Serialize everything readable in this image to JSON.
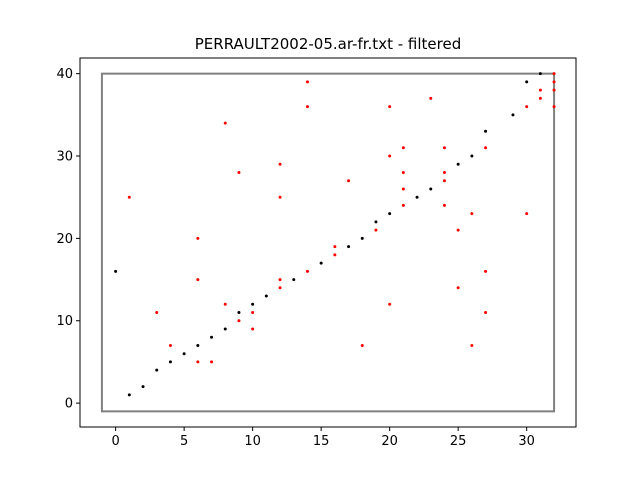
{
  "chart_data": {
    "type": "scatter",
    "title": "PERRAULT2002-05.ar-fr.txt - filtered",
    "xlabel": "",
    "ylabel": "",
    "xlim": [
      -2.6,
      33.6
    ],
    "ylim": [
      -2.9,
      41.9
    ],
    "xticks": [
      0,
      5,
      10,
      15,
      20,
      25,
      30
    ],
    "yticks": [
      0,
      10,
      20,
      30,
      40
    ],
    "grid": false,
    "box": {
      "x": [
        -1,
        32
      ],
      "y": [
        -1,
        40
      ],
      "color": "#808080"
    },
    "series": [
      {
        "color": "#000000",
        "points": [
          [
            0,
            16
          ],
          [
            1,
            1
          ],
          [
            2,
            2
          ],
          [
            3,
            4
          ],
          [
            4,
            5
          ],
          [
            5,
            6
          ],
          [
            6,
            7
          ],
          [
            7,
            8
          ],
          [
            8,
            9
          ],
          [
            9,
            11
          ],
          [
            10,
            12
          ],
          [
            11,
            13
          ],
          [
            13,
            15
          ],
          [
            15,
            17
          ],
          [
            17,
            19
          ],
          [
            18,
            20
          ],
          [
            19,
            22
          ],
          [
            20,
            23
          ],
          [
            22,
            25
          ],
          [
            23,
            26
          ],
          [
            25,
            29
          ],
          [
            26,
            30
          ],
          [
            27,
            33
          ],
          [
            29,
            35
          ],
          [
            30,
            39
          ],
          [
            31,
            40
          ]
        ]
      },
      {
        "color": "#ff0000",
        "points": [
          [
            1,
            25
          ],
          [
            3,
            11
          ],
          [
            4,
            7
          ],
          [
            6,
            20
          ],
          [
            6,
            15
          ],
          [
            6,
            5
          ],
          [
            7,
            5
          ],
          [
            8,
            34
          ],
          [
            8,
            12
          ],
          [
            9,
            28
          ],
          [
            9,
            10
          ],
          [
            10,
            11
          ],
          [
            10,
            9
          ],
          [
            12,
            29
          ],
          [
            12,
            25
          ],
          [
            12,
            15
          ],
          [
            12,
            14
          ],
          [
            14,
            39
          ],
          [
            14,
            36
          ],
          [
            14,
            16
          ],
          [
            16,
            19
          ],
          [
            16,
            18
          ],
          [
            17,
            27
          ],
          [
            18,
            7
          ],
          [
            19,
            21
          ],
          [
            20,
            36
          ],
          [
            20,
            30
          ],
          [
            20,
            12
          ],
          [
            21,
            31
          ],
          [
            21,
            28
          ],
          [
            21,
            26
          ],
          [
            21,
            24
          ],
          [
            23,
            37
          ],
          [
            24,
            31
          ],
          [
            24,
            28
          ],
          [
            24,
            27
          ],
          [
            24,
            24
          ],
          [
            25,
            21
          ],
          [
            25,
            14
          ],
          [
            26,
            23
          ],
          [
            26,
            7
          ],
          [
            27,
            31
          ],
          [
            27,
            16
          ],
          [
            27,
            11
          ],
          [
            30,
            36
          ],
          [
            30,
            23
          ],
          [
            31,
            38
          ],
          [
            31,
            37
          ],
          [
            32,
            40
          ],
          [
            32,
            39
          ],
          [
            32,
            38
          ],
          [
            32,
            36
          ]
        ]
      }
    ]
  }
}
